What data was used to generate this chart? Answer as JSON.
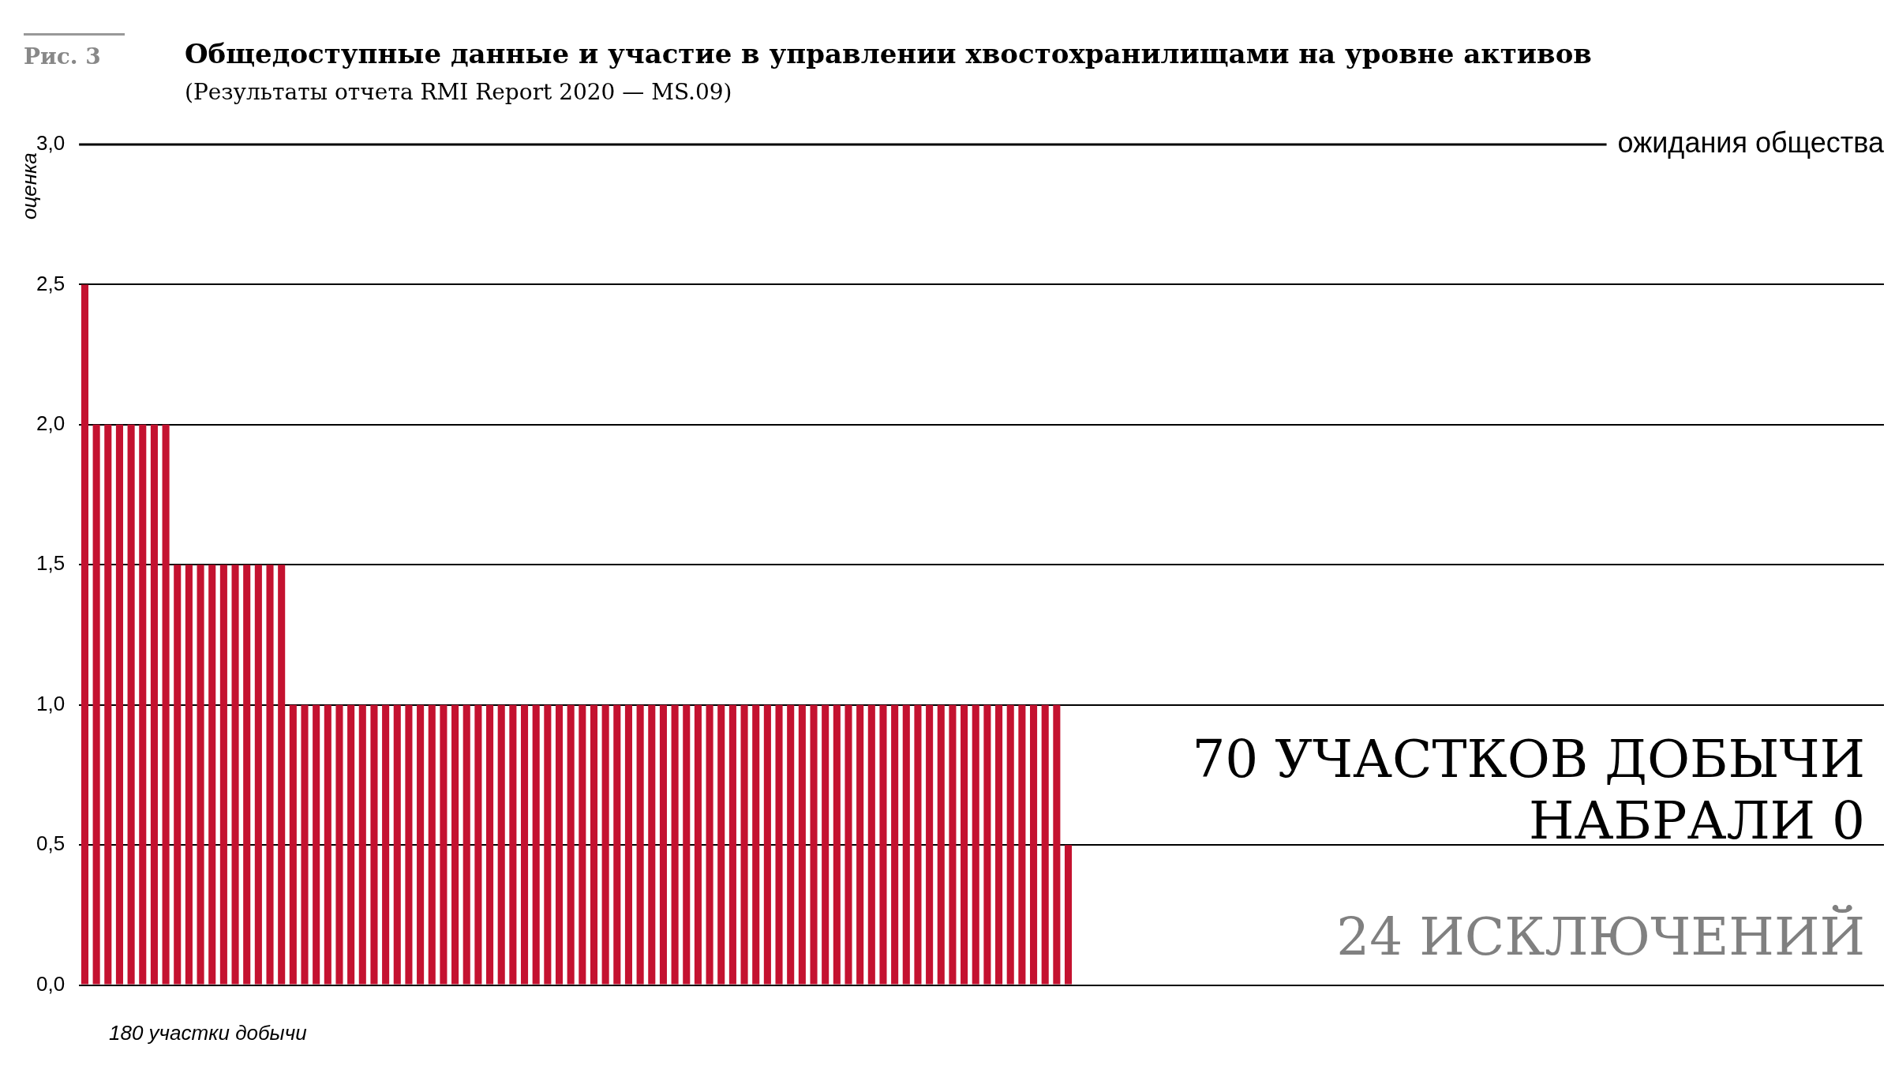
{
  "chart_data": {
    "type": "bar",
    "title": "Общедоступные данные и участие в управлении хвостохранилищами на уровне активов",
    "subtitle": "(Результаты отчета RMI Report 2020 — MS.09)",
    "xlabel": "180 участки добычи",
    "ylabel": "оценка",
    "annotations": [
      "Рис. 3",
      "70 УЧАСТКОВ ДОБЫЧИ НАБРАЛИ 0",
      "24 ИСКЛЮЧЕНИЙ"
    ],
    "categories": [
      null,
      null,
      null,
      null,
      null,
      null,
      null,
      null,
      null,
      null,
      null,
      null,
      null,
      null,
      null,
      null,
      null,
      null,
      null,
      null,
      null,
      null,
      null,
      null,
      null,
      null,
      null,
      null,
      null,
      null,
      null,
      null,
      null,
      null,
      null,
      null,
      null,
      null,
      null,
      null,
      null,
      null,
      null,
      null,
      null,
      null,
      null,
      null,
      null,
      null,
      null,
      null,
      null,
      null,
      null,
      null,
      null,
      null,
      null,
      null,
      null,
      null,
      null,
      null,
      null,
      null,
      null,
      null,
      null,
      null,
      null,
      null,
      null,
      null,
      null,
      null,
      null,
      null,
      null,
      null,
      null,
      null,
      null,
      null,
      null,
      null,
      null,
      null,
      null,
      null,
      null,
      null,
      null,
      null,
      null,
      null,
      null,
      null,
      null,
      null,
      null,
      null,
      null,
      null,
      null,
      null,
      null,
      null,
      null,
      null,
      null,
      null,
      null,
      null,
      null,
      null,
      null,
      null,
      null,
      null,
      null,
      null,
      null,
      null,
      null,
      null,
      null,
      null,
      null,
      null,
      null,
      null,
      null,
      null,
      null,
      null,
      null,
      null,
      null,
      null,
      null,
      null,
      null,
      null,
      null,
      null,
      null,
      null,
      null,
      null,
      null,
      null,
      null,
      null,
      null,
      null
    ],
    "values": [
      2.5,
      2,
      2,
      2,
      2,
      2,
      2,
      2,
      1.5,
      1.5,
      1.5,
      1.5,
      1.5,
      1.5,
      1.5,
      1.5,
      1.5,
      1.5,
      1,
      1,
      1,
      1,
      1,
      1,
      1,
      1,
      1,
      1,
      1,
      1,
      1,
      1,
      1,
      1,
      1,
      1,
      1,
      1,
      1,
      1,
      1,
      1,
      1,
      1,
      1,
      1,
      1,
      1,
      1,
      1,
      1,
      1,
      1,
      1,
      1,
      1,
      1,
      1,
      1,
      1,
      1,
      1,
      1,
      1,
      1,
      1,
      1,
      1,
      1,
      1,
      1,
      1,
      1,
      1,
      1,
      1,
      1,
      1,
      1,
      1,
      1,
      1,
      1,
      1,
      1,
      0.5,
      0,
      0,
      0,
      0,
      0,
      0,
      0,
      0,
      0,
      0,
      0,
      0,
      0,
      0,
      0,
      0,
      0,
      0,
      0,
      0,
      0,
      0,
      0,
      0,
      0,
      0,
      0,
      0,
      0,
      0,
      0,
      0,
      0,
      0,
      0,
      0,
      0,
      0,
      0,
      0,
      0,
      0,
      0,
      0,
      0,
      0,
      0,
      0,
      0,
      0,
      0,
      0,
      0,
      0,
      0,
      0,
      0,
      0,
      0,
      0,
      0,
      0,
      0,
      0,
      0,
      0,
      0,
      0,
      0,
      0
    ],
    "color": "#c41230",
    "ylim": [
      0,
      3
    ],
    "yticks": [
      {
        "value": 0,
        "label": "0,0"
      },
      {
        "value": 0.5,
        "label": "0,5"
      },
      {
        "value": 1,
        "label": "1,0"
      },
      {
        "value": 1.5,
        "label": "1,5"
      },
      {
        "value": 2,
        "label": "2,0"
      },
      {
        "value": 2.5,
        "label": "2,5"
      },
      {
        "value": 3,
        "label": "3,0"
      }
    ],
    "grid": "y",
    "legend": false,
    "ref_lines": [
      {
        "axis": "y",
        "value": 3,
        "label": "ожидания общества",
        "color": "#000000"
      }
    ]
  }
}
